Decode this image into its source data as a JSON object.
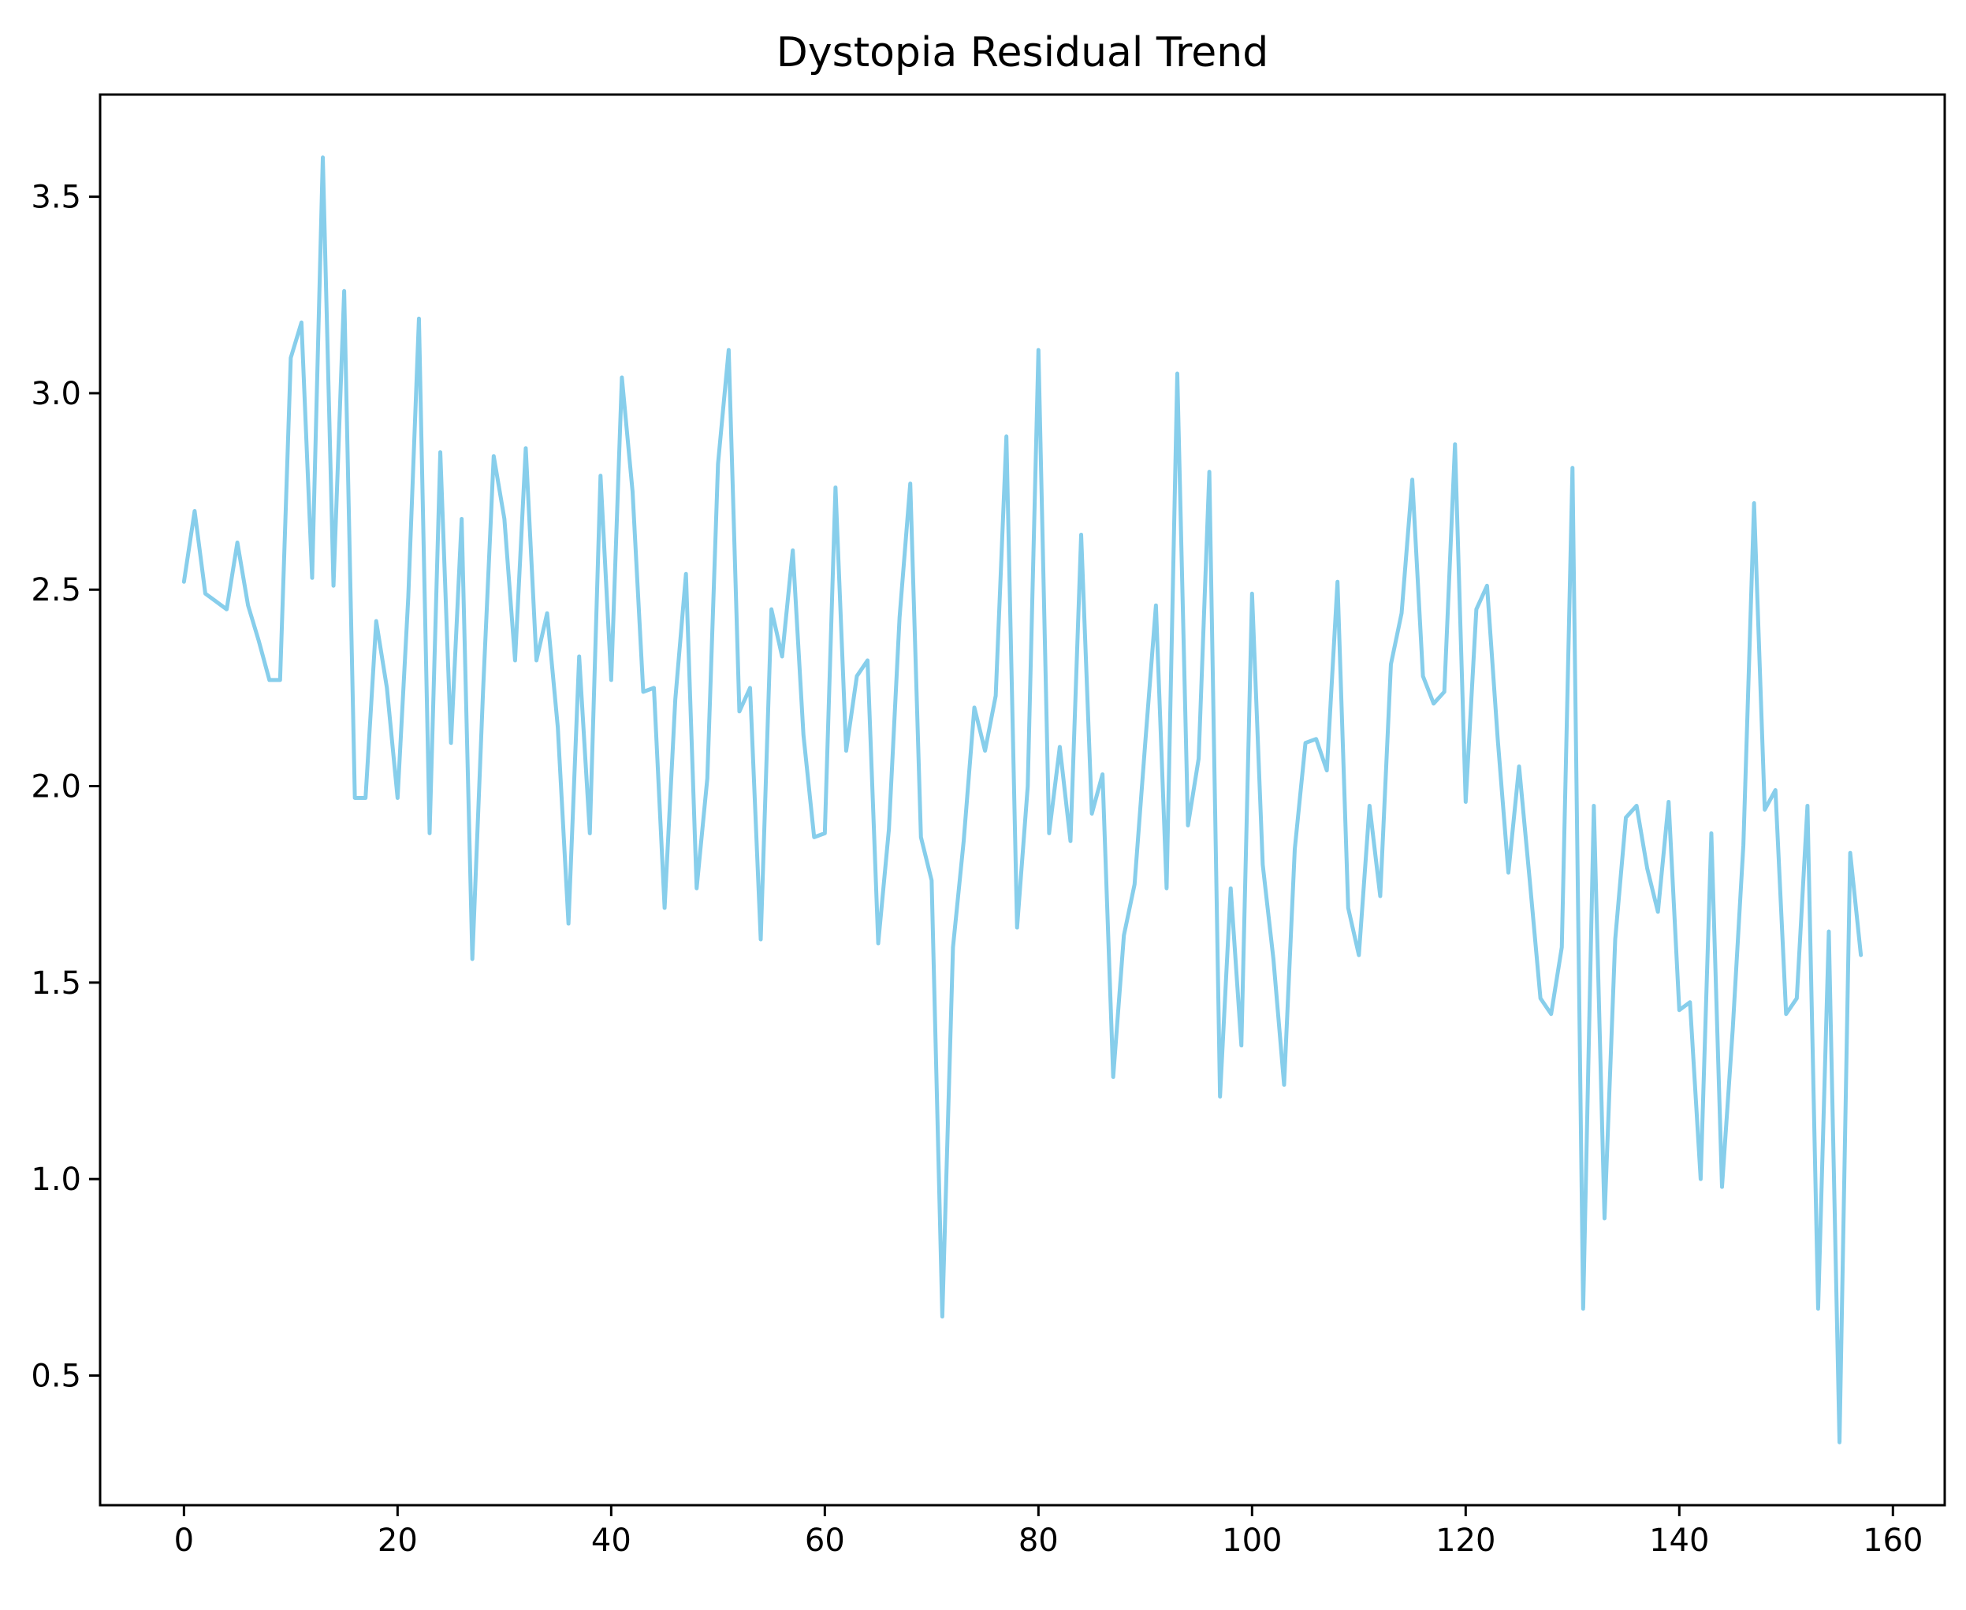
{
  "chart_data": {
    "type": "line",
    "title": "Dystopia Residual Trend",
    "xlabel": "",
    "ylabel": "",
    "xlim": [
      -7.85,
      164.85
    ],
    "ylim": [
      0.17,
      3.76
    ],
    "x_ticks": [
      0,
      20,
      40,
      60,
      80,
      100,
      120,
      140,
      160
    ],
    "y_ticks": [
      0.5,
      1.0,
      1.5,
      2.0,
      2.5,
      3.0,
      3.5
    ],
    "x_tick_labels": [
      "0",
      "20",
      "40",
      "60",
      "80",
      "100",
      "120",
      "140",
      "160"
    ],
    "y_tick_labels": [
      "0.5",
      "1.0",
      "1.5",
      "2.0",
      "2.5",
      "3.0",
      "3.5"
    ],
    "grid": false,
    "legend": "none",
    "series": [
      {
        "color": "#87ceeb",
        "values": [
          2.52,
          2.7,
          2.49,
          2.47,
          2.45,
          2.62,
          2.46,
          2.37,
          2.27,
          2.27,
          3.09,
          3.18,
          2.53,
          3.6,
          2.51,
          3.26,
          1.97,
          1.97,
          2.42,
          2.25,
          1.97,
          2.48,
          3.19,
          1.88,
          2.85,
          2.11,
          2.68,
          1.56,
          2.24,
          2.84,
          2.68,
          2.32,
          2.86,
          2.32,
          2.44,
          2.15,
          1.65,
          2.33,
          1.88,
          2.79,
          2.27,
          3.04,
          2.75,
          2.24,
          2.25,
          1.69,
          2.22,
          2.54,
          1.74,
          2.02,
          2.82,
          3.11,
          2.19,
          2.25,
          1.61,
          2.45,
          2.33,
          2.6,
          2.13,
          1.87,
          1.88,
          2.76,
          2.09,
          2.28,
          2.32,
          1.6,
          1.89,
          2.43,
          2.77,
          1.87,
          1.76,
          0.65,
          1.59,
          1.86,
          2.2,
          2.09,
          2.23,
          2.89,
          1.64,
          2.0,
          3.11,
          1.88,
          2.1,
          1.86,
          2.64,
          1.93,
          2.03,
          1.26,
          1.62,
          1.75,
          2.11,
          2.46,
          1.74,
          3.05,
          1.9,
          2.07,
          2.8,
          1.21,
          1.74,
          1.34,
          2.49,
          1.8,
          1.56,
          1.24,
          1.84,
          2.11,
          2.12,
          2.04,
          2.52,
          1.69,
          1.57,
          1.95,
          1.72,
          2.31,
          2.44,
          2.78,
          2.28,
          2.21,
          2.24,
          2.87,
          1.96,
          2.45,
          2.51,
          2.12,
          1.78,
          2.05,
          1.76,
          1.46,
          1.42,
          1.59,
          2.81,
          0.67,
          1.95,
          0.9,
          1.61,
          1.92,
          1.95,
          1.79,
          1.68,
          1.96,
          1.43,
          1.45,
          1.0,
          1.88,
          0.98,
          1.38,
          1.85,
          2.72,
          1.94,
          1.99,
          1.42,
          1.46,
          1.95,
          0.67,
          1.63,
          0.33,
          1.83,
          1.57
        ]
      }
    ]
  }
}
